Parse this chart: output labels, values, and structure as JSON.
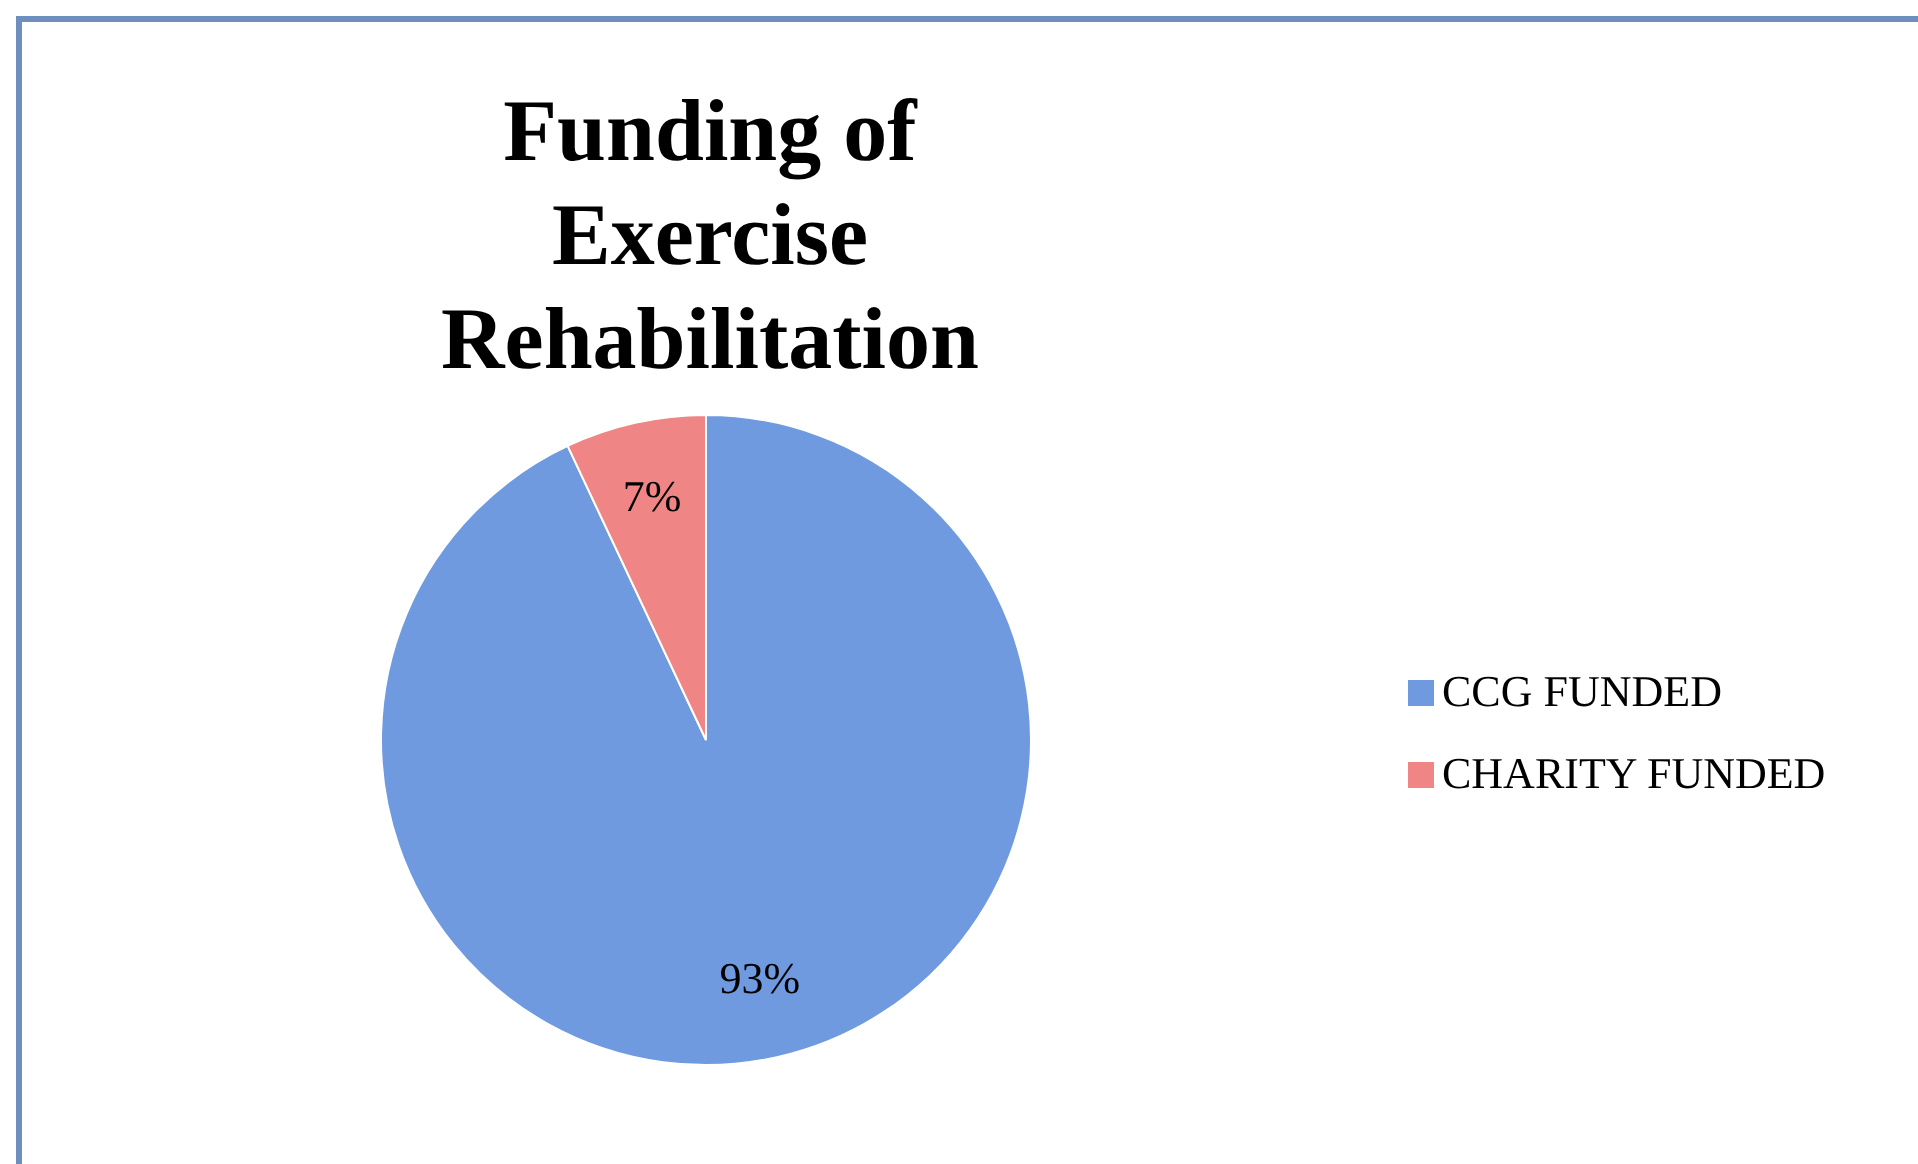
{
  "chart_data": {
    "type": "pie",
    "title": "Funding of Exercise Rehabilitation",
    "categories": [
      "CCG FUNDED",
      "CHARITY FUNDED"
    ],
    "values": [
      93,
      7
    ],
    "colors": [
      "#6f9ae0",
      "#ef8585"
    ],
    "value_labels": [
      "93%",
      "7%"
    ],
    "legend": "right"
  }
}
